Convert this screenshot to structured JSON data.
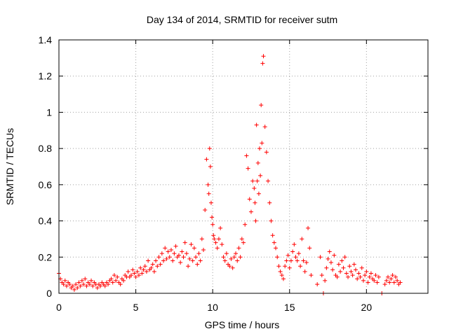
{
  "chart_data": {
    "type": "scatter",
    "title": "Day 134 of 2014, SRMTID for receiver sutm",
    "xlabel": "GPS time / hours",
    "ylabel": "SRMTID / TECUs",
    "xlim": [
      0,
      24
    ],
    "ylim": [
      0,
      1.4
    ],
    "xticks": [
      0,
      5,
      10,
      15,
      20
    ],
    "xtick_labels": [
      "0",
      "5",
      "10",
      "15",
      "20"
    ],
    "yticks": [
      0,
      0.2,
      0.4,
      0.6,
      0.8,
      1.0,
      1.2,
      1.4
    ],
    "ytick_labels": [
      "0",
      "0.2",
      "0.4",
      "0.6",
      "0.8",
      "1",
      "1.2",
      "1.4"
    ],
    "grid": true,
    "marker": "+",
    "color": "#ff0000",
    "series": [
      {
        "name": "SRMTID",
        "x": [
          0.0,
          0.1,
          0.2,
          0.3,
          0.4,
          0.5,
          0.6,
          0.7,
          0.8,
          0.9,
          1.0,
          1.1,
          1.2,
          1.3,
          1.4,
          1.5,
          1.6,
          1.7,
          1.8,
          1.9,
          2.0,
          2.1,
          2.2,
          2.3,
          2.4,
          2.5,
          2.6,
          2.7,
          2.8,
          2.9,
          3.0,
          3.1,
          3.2,
          3.3,
          3.4,
          3.5,
          3.6,
          3.7,
          3.8,
          3.9,
          4.0,
          4.1,
          4.2,
          4.3,
          4.4,
          4.5,
          4.6,
          4.7,
          4.8,
          4.9,
          5.0,
          5.1,
          5.2,
          5.3,
          5.4,
          5.5,
          5.6,
          5.7,
          5.8,
          5.9,
          6.0,
          6.1,
          6.2,
          6.3,
          6.4,
          6.5,
          6.6,
          6.7,
          6.8,
          6.9,
          7.0,
          7.1,
          7.2,
          7.3,
          7.4,
          7.5,
          7.6,
          7.7,
          7.8,
          7.9,
          8.0,
          8.1,
          8.2,
          8.3,
          8.4,
          8.5,
          8.6,
          8.7,
          8.8,
          8.9,
          9.0,
          9.1,
          9.2,
          9.3,
          9.4,
          9.5,
          9.6,
          9.7,
          9.75,
          9.8,
          9.85,
          9.9,
          9.95,
          10.0,
          10.05,
          10.1,
          10.2,
          10.3,
          10.4,
          10.5,
          10.6,
          10.7,
          10.8,
          10.9,
          11.0,
          11.1,
          11.2,
          11.3,
          11.4,
          11.5,
          11.6,
          11.7,
          11.8,
          11.9,
          12.0,
          12.1,
          12.2,
          12.3,
          12.4,
          12.5,
          12.6,
          12.7,
          12.75,
          12.8,
          12.85,
          12.9,
          12.95,
          13.0,
          13.05,
          13.1,
          13.15,
          13.2,
          13.25,
          13.3,
          13.4,
          13.5,
          13.6,
          13.7,
          13.8,
          13.9,
          14.0,
          14.1,
          14.2,
          14.3,
          14.4,
          14.5,
          14.6,
          14.7,
          14.8,
          14.9,
          15.0,
          15.1,
          15.2,
          15.3,
          15.4,
          15.5,
          15.6,
          15.7,
          15.8,
          15.9,
          16.0,
          16.1,
          16.2,
          16.3,
          16.4,
          16.8,
          17.0,
          17.1,
          17.2,
          17.3,
          17.4,
          17.5,
          17.6,
          17.7,
          17.8,
          17.9,
          18.0,
          18.1,
          18.2,
          18.3,
          18.4,
          18.5,
          18.6,
          18.7,
          18.8,
          18.9,
          19.0,
          19.1,
          19.2,
          19.3,
          19.4,
          19.5,
          19.6,
          19.7,
          19.8,
          19.9,
          20.0,
          20.1,
          20.2,
          20.3,
          20.4,
          20.5,
          20.6,
          20.7,
          20.8,
          21.0,
          21.2,
          21.3,
          21.4,
          21.5,
          21.6,
          21.7,
          21.8,
          21.9,
          22.0,
          22.1,
          22.2
        ],
        "y": [
          0.11,
          0.08,
          0.06,
          0.05,
          0.07,
          0.04,
          0.06,
          0.05,
          0.03,
          0.04,
          0.02,
          0.05,
          0.03,
          0.06,
          0.04,
          0.07,
          0.05,
          0.08,
          0.04,
          0.06,
          0.05,
          0.07,
          0.04,
          0.06,
          0.05,
          0.03,
          0.05,
          0.04,
          0.06,
          0.05,
          0.04,
          0.06,
          0.05,
          0.07,
          0.08,
          0.06,
          0.1,
          0.07,
          0.09,
          0.06,
          0.05,
          0.08,
          0.07,
          0.1,
          0.09,
          0.12,
          0.09,
          0.1,
          0.13,
          0.11,
          0.09,
          0.12,
          0.1,
          0.14,
          0.11,
          0.13,
          0.15,
          0.12,
          0.18,
          0.13,
          0.14,
          0.16,
          0.12,
          0.18,
          0.15,
          0.2,
          0.16,
          0.22,
          0.18,
          0.25,
          0.19,
          0.23,
          0.2,
          0.24,
          0.18,
          0.22,
          0.26,
          0.2,
          0.21,
          0.17,
          0.23,
          0.2,
          0.28,
          0.22,
          0.15,
          0.19,
          0.27,
          0.18,
          0.25,
          0.2,
          0.16,
          0.22,
          0.18,
          0.3,
          0.24,
          0.46,
          0.74,
          0.6,
          0.55,
          0.8,
          0.7,
          0.5,
          0.42,
          0.38,
          0.32,
          0.3,
          0.28,
          0.25,
          0.3,
          0.36,
          0.27,
          0.2,
          0.18,
          0.22,
          0.16,
          0.15,
          0.19,
          0.14,
          0.2,
          0.22,
          0.18,
          0.25,
          0.2,
          0.3,
          0.28,
          0.38,
          0.76,
          0.69,
          0.52,
          0.45,
          0.62,
          0.58,
          0.5,
          0.4,
          0.93,
          0.62,
          0.72,
          0.55,
          0.8,
          0.65,
          1.04,
          0.83,
          1.27,
          1.31,
          0.92,
          0.78,
          0.62,
          0.5,
          0.4,
          0.32,
          0.28,
          0.25,
          0.2,
          0.15,
          0.12,
          0.1,
          0.08,
          0.15,
          0.18,
          0.21,
          0.14,
          0.18,
          0.23,
          0.27,
          0.2,
          0.18,
          0.22,
          0.15,
          0.3,
          0.18,
          0.12,
          0.17,
          0.36,
          0.25,
          0.1,
          0.05,
          0.2,
          0.1,
          0.0,
          0.07,
          0.14,
          0.19,
          0.23,
          0.17,
          0.13,
          0.21,
          0.1,
          0.09,
          0.16,
          0.12,
          0.18,
          0.14,
          0.2,
          0.11,
          0.09,
          0.15,
          0.12,
          0.1,
          0.16,
          0.13,
          0.08,
          0.11,
          0.09,
          0.14,
          0.07,
          0.1,
          0.12,
          0.06,
          0.09,
          0.11,
          0.08,
          0.07,
          0.1,
          0.06,
          0.09,
          0.0,
          0.05,
          0.07,
          0.09,
          0.06,
          0.08,
          0.1,
          0.06,
          0.09,
          0.07,
          0.05,
          0.06
        ]
      }
    ]
  }
}
